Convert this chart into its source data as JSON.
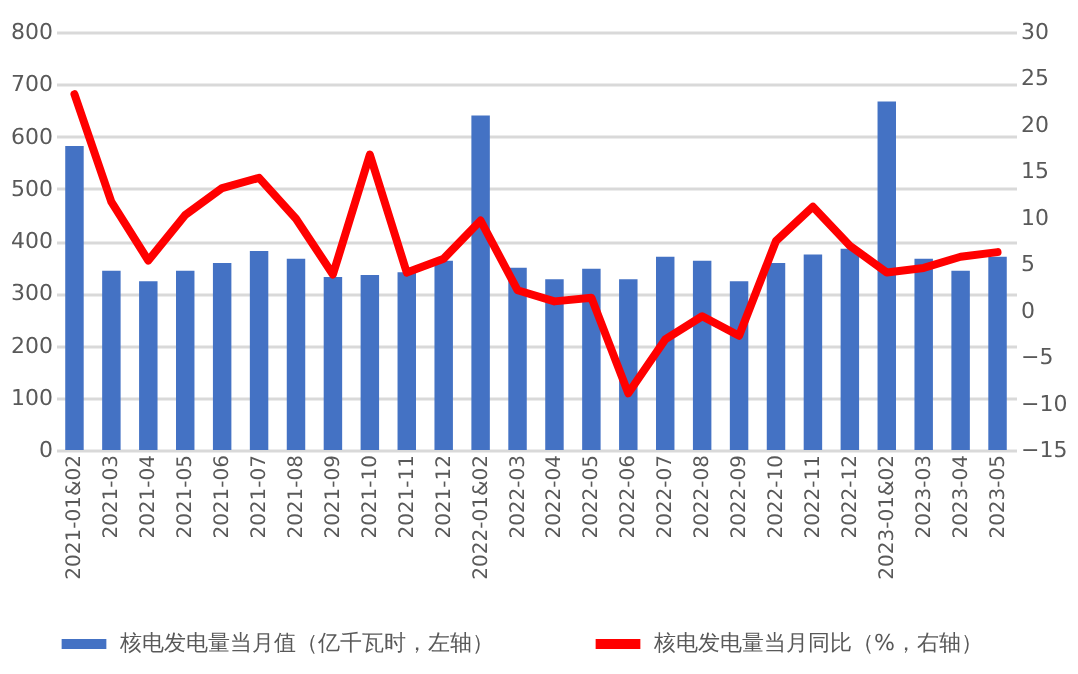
{
  "chart_data": {
    "type": "bar",
    "categories": [
      "2021-01&02",
      "2021-03",
      "2021-04",
      "2021-05",
      "2021-06",
      "2021-07",
      "2021-08",
      "2021-09",
      "2021-10",
      "2021-11",
      "2021-12",
      "2022-01&02",
      "2022-03",
      "2022-04",
      "2022-05",
      "2022-06",
      "2022-07",
      "2022-08",
      "2022-09",
      "2022-10",
      "2022-11",
      "2022-12",
      "2023-01&02",
      "2023-03",
      "2023-04",
      "2023-05"
    ],
    "series": [
      {
        "name": "核电发电量当月值（亿千瓦时，左轴）",
        "axis": "y",
        "color": "#4472c4",
        "values": [
          582,
          343,
          323,
          343,
          358,
          381,
          366,
          331,
          335,
          340,
          362,
          640,
          349,
          327,
          347,
          327,
          370,
          362,
          323,
          358,
          374,
          385,
          667,
          366,
          343,
          370
        ]
      },
      {
        "name": "核电发电量当月同比（%，右轴）",
        "type": "line",
        "axis": "y2",
        "color": "#ff0000",
        "values": [
          23.3,
          11.7,
          5.4,
          10.3,
          13.2,
          14.3,
          9.9,
          3.9,
          16.8,
          4.1,
          5.6,
          9.7,
          2.2,
          1.0,
          1.4,
          -8.9,
          -3.1,
          -0.6,
          -2.7,
          7.5,
          11.2,
          7.0,
          4.1,
          4.6,
          5.8,
          6.3
        ]
      }
    ],
    "ylim": [
      0,
      800
    ],
    "yticks": [
      0,
      100,
      200,
      300,
      400,
      500,
      600,
      700,
      800
    ],
    "y2lim": [
      -15,
      30
    ],
    "y2ticks": [
      -15,
      -10,
      -5,
      0,
      5,
      10,
      15,
      20,
      25,
      30
    ],
    "grid": "y",
    "legend": "bottom"
  }
}
